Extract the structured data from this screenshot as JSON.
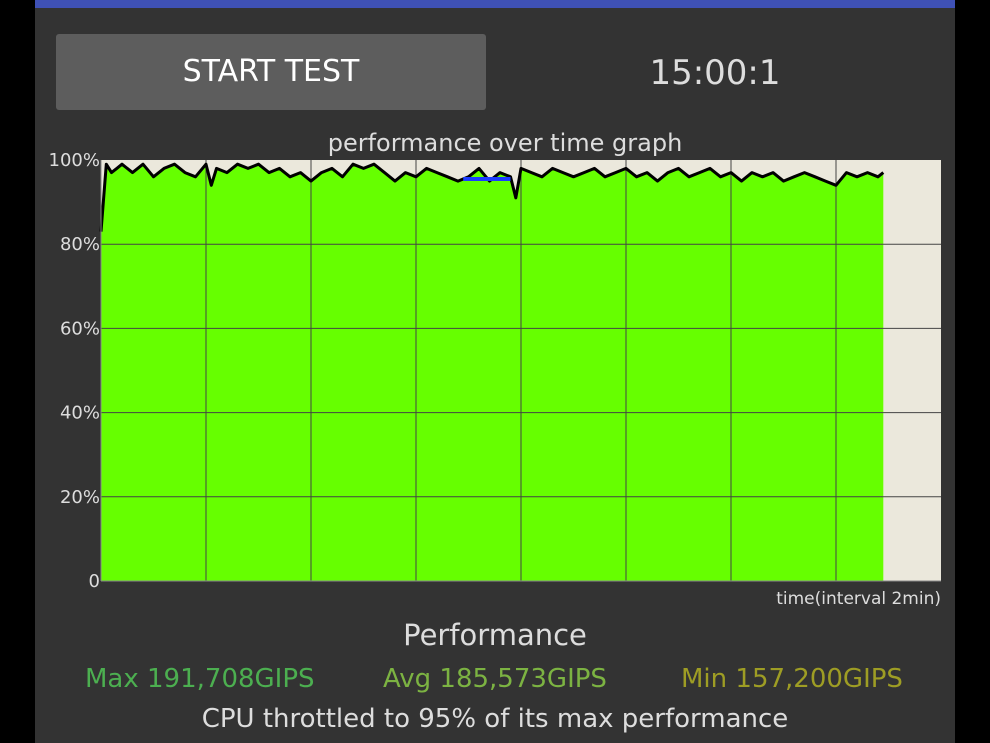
{
  "header": {
    "start_button_label": "START TEST",
    "timer": "15:00:1"
  },
  "chart_data": {
    "type": "area",
    "title": "performance over time graph",
    "xlabel": "time(interval 2min)",
    "ylabel": "",
    "y_ticks": [
      "100%",
      "80%",
      "60%",
      "40%",
      "20%",
      "0"
    ],
    "ylim": [
      0,
      100
    ],
    "x_unit": "minutes",
    "xlim": [
      0,
      16
    ],
    "grid": true,
    "series": [
      {
        "x": [
          0,
          0.1,
          0.2,
          0.3,
          0.4,
          0.6,
          0.8,
          1.0,
          1.2,
          1.4,
          1.6,
          1.8,
          2.0,
          2.1,
          2.2,
          2.4,
          2.6,
          2.8,
          3.0,
          3.2,
          3.4,
          3.6,
          3.8,
          4.0,
          4.2,
          4.4,
          4.6,
          4.8,
          5.0,
          5.2,
          5.4,
          5.6,
          5.8,
          6.0,
          6.2,
          6.4,
          6.6,
          6.8,
          7.0,
          7.2,
          7.4,
          7.6,
          7.8,
          7.9,
          8.0,
          8.2,
          8.4,
          8.6,
          8.8,
          9.0,
          9.2,
          9.4,
          9.6,
          9.8,
          10.0,
          10.2,
          10.4,
          10.6,
          10.8,
          11.0,
          11.2,
          11.4,
          11.6,
          11.8,
          12.0,
          12.2,
          12.4,
          12.6,
          12.8,
          13.0,
          13.2,
          13.4,
          13.6,
          13.8,
          14.0,
          14.2,
          14.4,
          14.6,
          14.8,
          14.9
        ],
        "y": [
          83,
          99,
          97,
          98,
          99,
          97,
          99,
          96,
          98,
          99,
          97,
          96,
          99,
          94,
          98,
          97,
          99,
          98,
          99,
          97,
          98,
          96,
          97,
          95,
          97,
          98,
          96,
          99,
          98,
          99,
          97,
          95,
          97,
          96,
          98,
          97,
          96,
          95,
          96,
          98,
          95,
          97,
          96,
          91,
          98,
          97,
          96,
          98,
          97,
          96,
          97,
          98,
          96,
          97,
          98,
          96,
          97,
          95,
          97,
          98,
          96,
          97,
          98,
          96,
          97,
          95,
          97,
          96,
          97,
          95,
          96,
          97,
          96,
          95,
          94,
          97,
          96,
          97,
          96,
          97
        ]
      }
    ]
  },
  "summary": {
    "heading": "Performance",
    "max": "Max 191,708GIPS",
    "avg": "Avg 185,573GIPS",
    "min": "Min 157,200GIPS",
    "throttle_message": "CPU throttled to 95% of its max performance"
  },
  "colors": {
    "accent": "#3f51b5",
    "fill": "#66ff00",
    "plot_background": "#ebe8dc",
    "line": "#000000",
    "marker": "#1a3cff",
    "max_text": "#4caf50",
    "avg_text": "#7cb342",
    "min_text": "#9e9d24"
  }
}
